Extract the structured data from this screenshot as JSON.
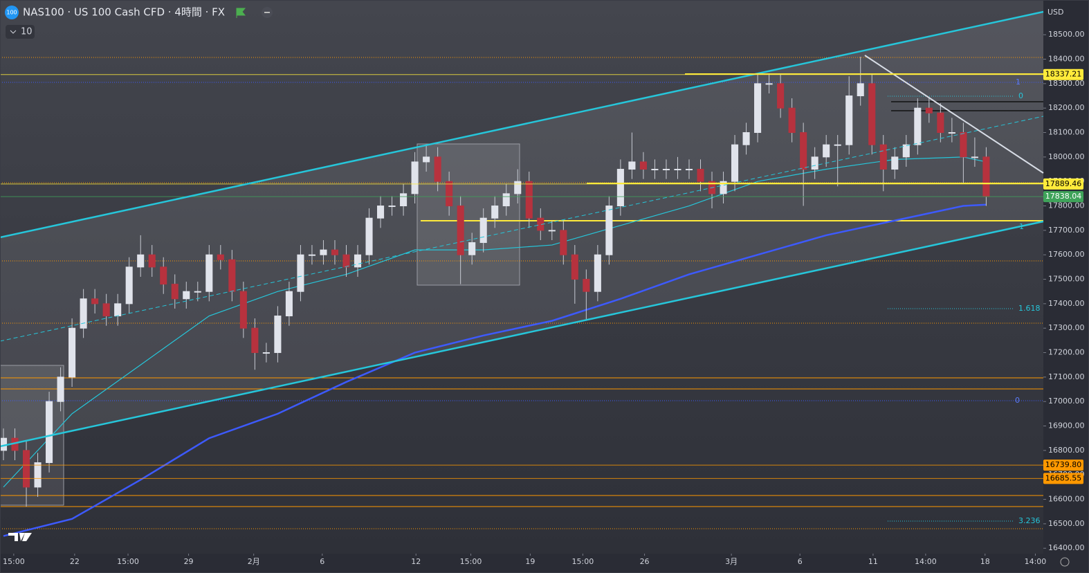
{
  "header": {
    "logo": "100",
    "title": "NAS100 · US 100 Cash CFD · 4時間 · FX",
    "indicator_count": "10",
    "currency": "USD"
  },
  "fib_labels": [
    "1",
    "0",
    "1.618",
    "0",
    "3.236",
    "1"
  ],
  "chart_data": {
    "type": "candlestick",
    "grid": false,
    "up_color": "#e0e3eb",
    "down_color": "#b7323e",
    "xlim": [
      0,
      91
    ],
    "ylim": [
      16378,
      18642
    ],
    "xticks": [
      {
        "value": 0.9,
        "label": "15:00"
      },
      {
        "value": 6.23,
        "label": "22"
      },
      {
        "value": 10.9,
        "label": "15:00"
      },
      {
        "value": 16.2,
        "label": "29"
      },
      {
        "value": 21.9,
        "label": "2月"
      },
      {
        "value": 27.9,
        "label": "6"
      },
      {
        "value": 36.1,
        "label": "12"
      },
      {
        "value": 40.9,
        "label": "15:00"
      },
      {
        "value": 46.1,
        "label": "19"
      },
      {
        "value": 50.7,
        "label": "15:00"
      },
      {
        "value": 56.1,
        "label": "26"
      },
      {
        "value": 63.7,
        "label": "3月"
      },
      {
        "value": 69.7,
        "label": "6"
      },
      {
        "value": 76.1,
        "label": "11"
      },
      {
        "value": 80.7,
        "label": "14:00"
      },
      {
        "value": 85.9,
        "label": "18"
      },
      {
        "value": 90.3,
        "label": "14:00"
      }
    ],
    "yticks": [
      {
        "value": 18500,
        "label": "18500.00"
      },
      {
        "value": 18400,
        "label": "18400.00"
      },
      {
        "value": 18300,
        "label": "18300.00"
      },
      {
        "value": 18200,
        "label": "18200.00"
      },
      {
        "value": 18100,
        "label": "18100.00"
      },
      {
        "value": 18000,
        "label": "18000.00"
      },
      {
        "value": 17900,
        "label": "17900.00"
      },
      {
        "value": 17800,
        "label": "17800.00"
      },
      {
        "value": 17700,
        "label": "17700.00"
      },
      {
        "value": 17600,
        "label": "17600.00"
      },
      {
        "value": 17500,
        "label": "17500.00"
      },
      {
        "value": 17400,
        "label": "17400.00"
      },
      {
        "value": 17300,
        "label": "17300.00"
      },
      {
        "value": 17200,
        "label": "17200.00"
      },
      {
        "value": 17100,
        "label": "17100.00"
      },
      {
        "value": 17000,
        "label": "17000.00"
      },
      {
        "value": 16900,
        "label": "16900.00"
      },
      {
        "value": 16800,
        "label": "16800.00"
      },
      {
        "value": 16700,
        "label": "16700.00"
      },
      {
        "value": 16600,
        "label": "16600.00"
      },
      {
        "value": 16500,
        "label": "16500.00"
      },
      {
        "value": 16400,
        "label": "16400.00"
      }
    ],
    "open": [
      16800,
      16850,
      16800,
      16650,
      16750,
      17000,
      17100,
      17300,
      17420,
      17400,
      17350,
      17400,
      17550,
      17600,
      17550,
      17480,
      17420,
      17450,
      17450,
      17600,
      17580,
      17450,
      17300,
      17200,
      17200,
      17350,
      17450,
      17600,
      17600,
      17620,
      17600,
      17550,
      17600,
      17750,
      17800,
      17800,
      17850,
      17980,
      18000,
      17900,
      17800,
      17600,
      17650,
      17750,
      17800,
      17850,
      17900,
      17750,
      17700,
      17700,
      17600,
      17500,
      17450,
      17600,
      17800,
      17950,
      17980,
      17950,
      17950,
      17950,
      17950,
      17950,
      17900,
      17850,
      17900,
      18050,
      18100,
      18300,
      18300,
      18200,
      18100,
      17950,
      18000,
      18050,
      18050,
      18250,
      18300,
      18050,
      17950,
      18000,
      18050,
      18200,
      18180,
      18100,
      18100,
      18000,
      18000
    ],
    "high": [
      16890,
      16890,
      16840,
      16790,
      17040,
      17140,
      17340,
      17460,
      17460,
      17440,
      17440,
      17590,
      17680,
      17640,
      17590,
      17520,
      17490,
      17490,
      17640,
      17640,
      17620,
      17490,
      17340,
      17240,
      17390,
      17490,
      17640,
      17640,
      17660,
      17660,
      17640,
      17640,
      17790,
      17840,
      17840,
      17890,
      18020,
      18050,
      18040,
      17940,
      17840,
      17690,
      17790,
      17840,
      17890,
      17950,
      17940,
      17790,
      17740,
      17740,
      17640,
      17540,
      17640,
      17840,
      17990,
      18100,
      18020,
      17990,
      17990,
      18000,
      17990,
      17990,
      17940,
      17940,
      18090,
      18140,
      18340,
      18340,
      18340,
      18240,
      18140,
      18040,
      18090,
      18090,
      18330,
      18410,
      18340,
      18090,
      18040,
      18090,
      18240,
      18240,
      18220,
      18160,
      18140,
      18080,
      18040
    ],
    "low": [
      16760,
      16760,
      16570,
      16610,
      16710,
      16960,
      17060,
      17260,
      17360,
      17310,
      17310,
      17360,
      17510,
      17510,
      17440,
      17380,
      17380,
      17410,
      17410,
      17540,
      17410,
      17260,
      17130,
      17160,
      17160,
      17310,
      17410,
      17560,
      17560,
      17560,
      17510,
      17510,
      17560,
      17710,
      17760,
      17760,
      17810,
      17940,
      17860,
      17760,
      17480,
      17560,
      17610,
      17710,
      17760,
      17810,
      17710,
      17660,
      17660,
      17560,
      17400,
      17330,
      17410,
      17560,
      17760,
      17910,
      17910,
      17910,
      17910,
      17910,
      17910,
      17860,
      17790,
      17810,
      17860,
      18010,
      18060,
      18260,
      18160,
      18060,
      17800,
      17910,
      17960,
      17880,
      18010,
      18210,
      18010,
      17860,
      17910,
      17960,
      18010,
      18140,
      18060,
      18060,
      17890,
      17960,
      17800
    ],
    "close": [
      16850,
      16800,
      16650,
      16750,
      17000,
      17100,
      17300,
      17420,
      17400,
      17350,
      17400,
      17550,
      17600,
      17550,
      17480,
      17420,
      17450,
      17450,
      17600,
      17580,
      17450,
      17300,
      17200,
      17200,
      17350,
      17450,
      17600,
      17600,
      17620,
      17600,
      17550,
      17600,
      17750,
      17800,
      17800,
      17850,
      17980,
      18000,
      17900,
      17800,
      17600,
      17650,
      17750,
      17800,
      17850,
      17900,
      17750,
      17700,
      17700,
      17600,
      17500,
      17450,
      17600,
      17800,
      17950,
      17980,
      17950,
      17950,
      17950,
      17950,
      17950,
      17900,
      17850,
      17900,
      18050,
      18100,
      18300,
      18300,
      18200,
      18100,
      17950,
      18000,
      18050,
      18050,
      18250,
      18300,
      18050,
      17950,
      18000,
      18050,
      18200,
      18180,
      18100,
      18100,
      18000,
      18000,
      17838
    ],
    "ma_series": [
      {
        "color": "#3d5afe",
        "x": [
          0,
          6,
          12,
          18,
          24,
          30,
          36,
          42,
          48,
          54,
          60,
          66,
          72,
          78,
          84,
          86
        ],
        "values": [
          16450,
          16520,
          16680,
          16850,
          16950,
          17080,
          17200,
          17270,
          17330,
          17420,
          17520,
          17600,
          17680,
          17740,
          17800,
          17805
        ]
      },
      {
        "color": "#26c6da",
        "x": [
          0,
          6,
          12,
          18,
          24,
          30,
          36,
          42,
          48,
          54,
          60,
          66,
          72,
          78,
          84,
          86
        ],
        "values": [
          16650,
          16950,
          17150,
          17350,
          17450,
          17520,
          17620,
          17620,
          17640,
          17720,
          17800,
          17900,
          17950,
          17990,
          18000,
          17980
        ]
      }
    ],
    "price_labels": [
      {
        "value": 18337.21,
        "label": "18337.21",
        "color": "#ffeb3b",
        "text_color": "#000000"
      },
      {
        "value": 17889.46,
        "label": "17889.46",
        "color": "#ffeb3b",
        "text_color": "#000000"
      },
      {
        "value": 17838.04,
        "label": "17838.04",
        "color": "#3fa35a",
        "text_color": "#ffffff"
      },
      {
        "value": 16739.8,
        "label": "16739.80",
        "color": "#ff9800",
        "text_color": "#000000"
      },
      {
        "value": 16685.55,
        "label": "16685.55",
        "color": "#ff9800",
        "text_color": "#000000"
      }
    ]
  }
}
